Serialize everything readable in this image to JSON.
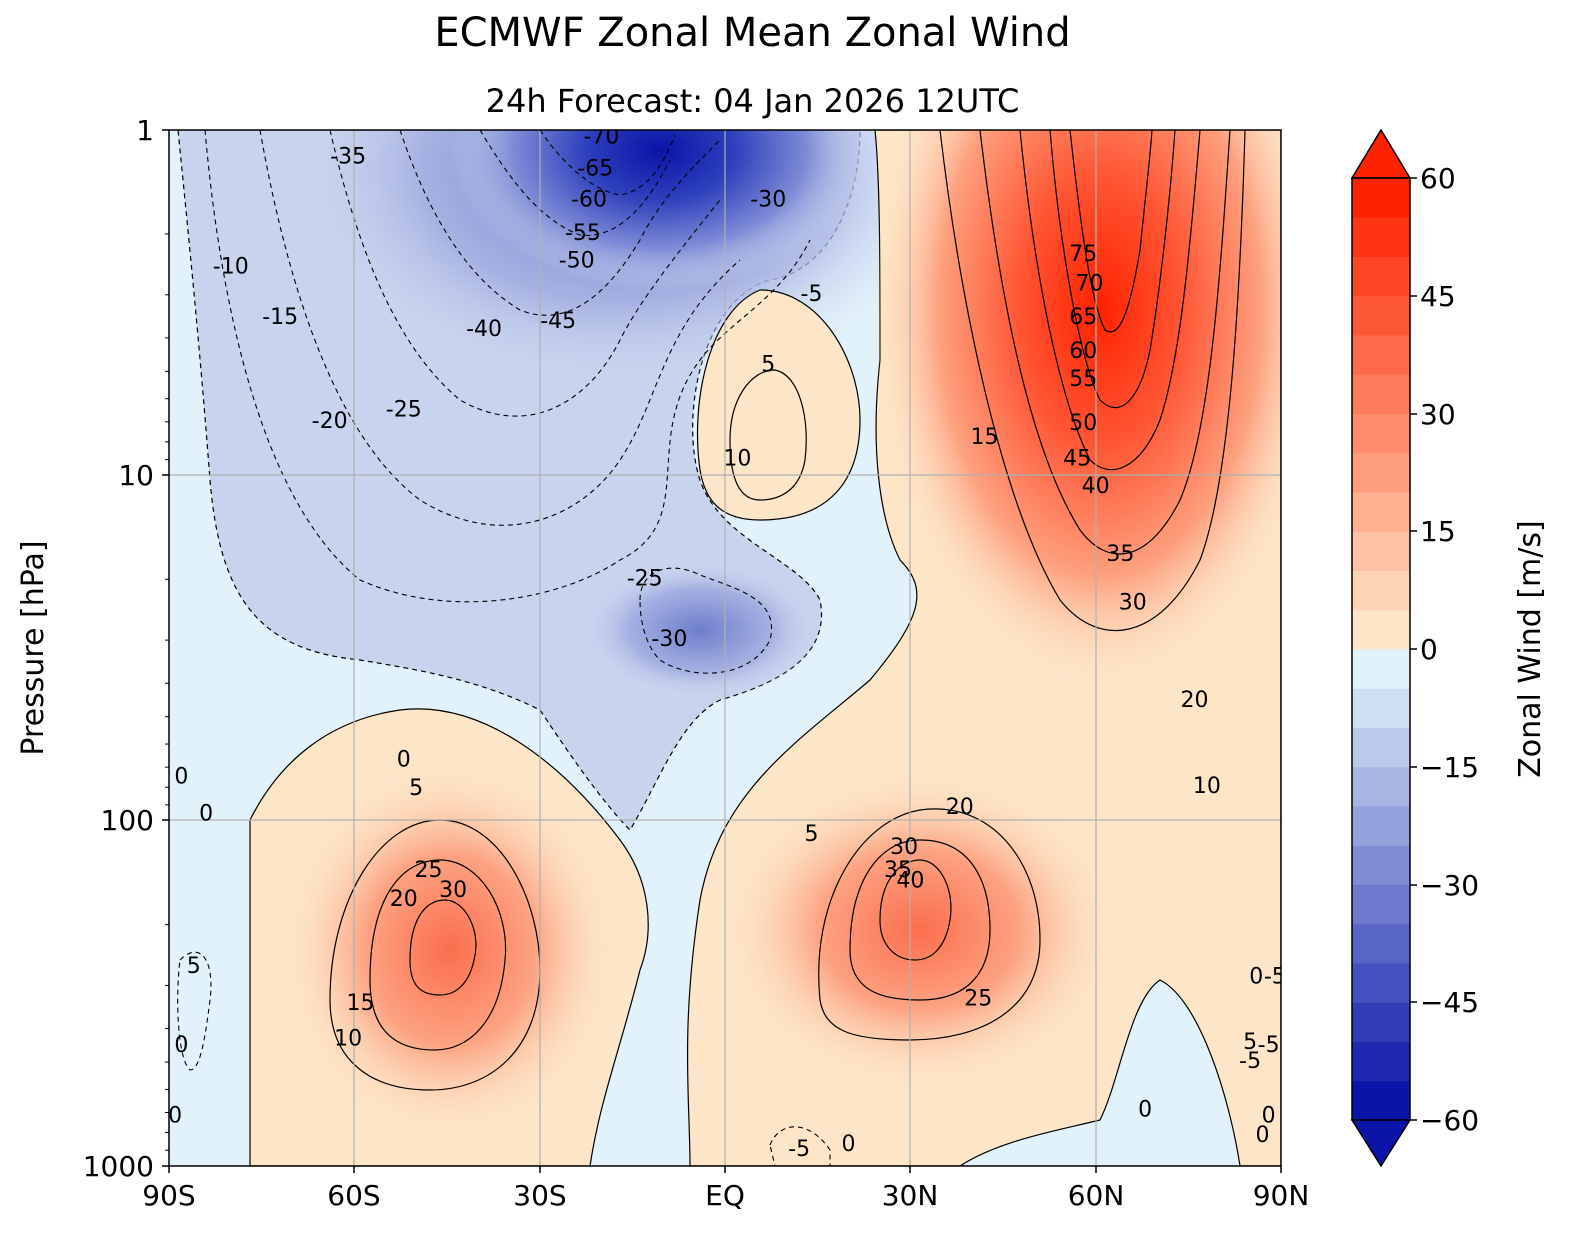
{
  "chart_data": {
    "type": "contour",
    "title": "ECMWF Zonal Mean Zonal Wind",
    "subtitle": "24h  Forecast:  04 Jan 2026  12UTC",
    "xlabel": "",
    "ylabel": "Pressure [hPa]",
    "colorbar_label": "Zonal Wind [m/s]",
    "x_ticks": [
      "90S",
      "60S",
      "30S",
      "EQ",
      "30N",
      "60N",
      "90N"
    ],
    "y_ticks": [
      "1",
      "10",
      "100",
      "1000"
    ],
    "y_scale": "log",
    "y_range_hPa": [
      1000,
      1
    ],
    "x_range_deg": [
      -90,
      90
    ],
    "colorbar_ticks": [
      "60",
      "45",
      "30",
      "15",
      "0",
      "−15",
      "−30",
      "−45",
      "−60"
    ],
    "colorbar_range": [
      -60,
      60
    ],
    "colorbar_step": 5,
    "grid": true,
    "colors": {
      "strong_easterly": "#0a14a8",
      "weak_easterly": "#e2f2fa",
      "weak_westerly": "#fde5c8",
      "strong_westerly": "#ff2200"
    },
    "contour_labels": [
      {
        "text": "-35",
        "lat": -61,
        "p": 1.2
      },
      {
        "text": "-70",
        "lat": -20,
        "p": 1.05
      },
      {
        "text": "-65",
        "lat": -21,
        "p": 1.3
      },
      {
        "text": "-60",
        "lat": -22,
        "p": 1.6
      },
      {
        "text": "-55",
        "lat": -23,
        "p": 2.0
      },
      {
        "text": "-50",
        "lat": -24,
        "p": 2.4
      },
      {
        "text": "-30",
        "lat": 7,
        "p": 1.6
      },
      {
        "text": "-10",
        "lat": -80,
        "p": 2.5
      },
      {
        "text": "-15",
        "lat": -72,
        "p": 3.5
      },
      {
        "text": "-40",
        "lat": -39,
        "p": 3.8
      },
      {
        "text": "-45",
        "lat": -27,
        "p": 3.6
      },
      {
        "text": "-5",
        "lat": 14,
        "p": 3.0
      },
      {
        "text": "5",
        "lat": 7,
        "p": 4.8
      },
      {
        "text": "-20",
        "lat": -64,
        "p": 7.0
      },
      {
        "text": "-25",
        "lat": -52,
        "p": 6.5
      },
      {
        "text": "10",
        "lat": 2,
        "p": 9.0
      },
      {
        "text": "15",
        "lat": 42,
        "p": 7.8
      },
      {
        "text": "75",
        "lat": 58,
        "p": 2.3
      },
      {
        "text": "70",
        "lat": 59,
        "p": 2.8
      },
      {
        "text": "65",
        "lat": 58,
        "p": 3.5
      },
      {
        "text": "60",
        "lat": 58,
        "p": 4.4
      },
      {
        "text": "55",
        "lat": 58,
        "p": 5.3
      },
      {
        "text": "50",
        "lat": 58,
        "p": 7.1
      },
      {
        "text": "45",
        "lat": 57,
        "p": 9.0
      },
      {
        "text": "40",
        "lat": 60,
        "p": 10.8
      },
      {
        "text": "35",
        "lat": 64,
        "p": 17.0
      },
      {
        "text": "30",
        "lat": 66,
        "p": 23.5
      },
      {
        "text": "-25",
        "lat": -13,
        "p": 20.0
      },
      {
        "text": "-30",
        "lat": -9,
        "p": 30.0
      },
      {
        "text": "20",
        "lat": 76,
        "p": 45.0
      },
      {
        "text": "0",
        "lat": -88,
        "p": 75.0
      },
      {
        "text": "0",
        "lat": -52,
        "p": 67.0
      },
      {
        "text": "5",
        "lat": -50,
        "p": 81.0
      },
      {
        "text": "10",
        "lat": 78,
        "p": 80.0
      },
      {
        "text": "0",
        "lat": -84,
        "p": 96.0
      },
      {
        "text": "5",
        "lat": 14,
        "p": 110.0
      },
      {
        "text": "20",
        "lat": 38,
        "p": 92.0
      },
      {
        "text": "30",
        "lat": 29,
        "p": 120.0
      },
      {
        "text": "35",
        "lat": 28,
        "p": 140.0
      },
      {
        "text": "40",
        "lat": 30,
        "p": 150.0
      },
      {
        "text": "25",
        "lat": -48,
        "p": 140.0
      },
      {
        "text": "30",
        "lat": -44,
        "p": 160.0
      },
      {
        "text": "20",
        "lat": -52,
        "p": 170.0
      },
      {
        "text": "25",
        "lat": 41,
        "p": 330.0
      },
      {
        "text": "15",
        "lat": -59,
        "p": 340.0
      },
      {
        "text": "10",
        "lat": -61,
        "p": 430.0
      },
      {
        "text": "5",
        "lat": -86,
        "p": 265.0
      },
      {
        "text": "0",
        "lat": -88,
        "p": 450.0
      },
      {
        "text": "0",
        "lat": 86,
        "p": 285.0
      },
      {
        "text": "-5",
        "lat": 89,
        "p": 285.0
      },
      {
        "text": "5",
        "lat": 85,
        "p": 440.0
      },
      {
        "text": "-5",
        "lat": 88,
        "p": 450.0
      },
      {
        "text": "-5",
        "lat": 85,
        "p": 500.0
      },
      {
        "text": "0",
        "lat": 68,
        "p": 690.0
      },
      {
        "text": "-5",
        "lat": 12,
        "p": 900.0
      },
      {
        "text": "0",
        "lat": 20,
        "p": 870.0
      },
      {
        "text": "0",
        "lat": -89,
        "p": 720.0
      },
      {
        "text": "0",
        "lat": 88,
        "p": 720.0
      },
      {
        "text": "0",
        "lat": 87,
        "p": 820.0
      }
    ]
  }
}
